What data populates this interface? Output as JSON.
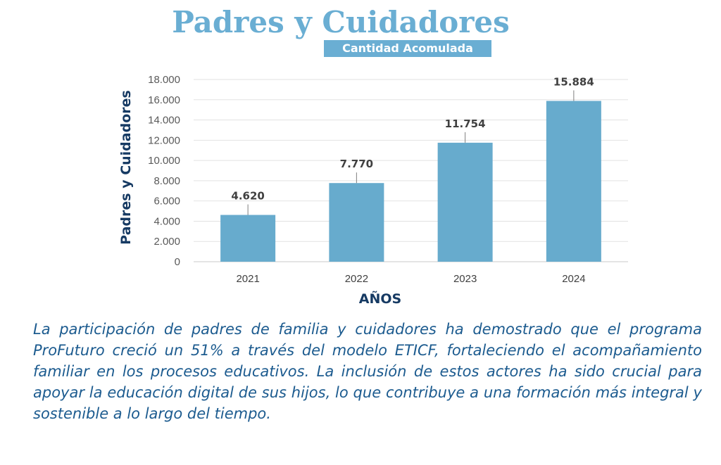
{
  "colors": {
    "title": "#6aaed3",
    "bar": "#67abcd",
    "axis_label": "#163a63",
    "caption": "#1c5b8f"
  },
  "chart_data": {
    "type": "bar",
    "title": "Padres y Cuidadores",
    "subtitle": "Cantidad Acomulada",
    "xlabel": "AÑOS",
    "ylabel": "Padres y Cuidadores",
    "categories": [
      "2021",
      "2022",
      "2023",
      "2024"
    ],
    "values": [
      4620,
      7770,
      11754,
      15884
    ],
    "value_labels": [
      "4.620",
      "7.770",
      "11.754",
      "15.884"
    ],
    "ylim": [
      0,
      18000
    ],
    "yticks": [
      0,
      2000,
      4000,
      6000,
      8000,
      10000,
      12000,
      14000,
      16000,
      18000
    ],
    "ytick_labels": [
      "0",
      "2.000",
      "4.000",
      "6.000",
      "8.000",
      "10.000",
      "12.000",
      "14.000",
      "16.000",
      "18.000"
    ],
    "grid": true,
    "legend": "none"
  },
  "caption": "La participación de padres de familia y cuidadores ha demostrado que el programa ProFuturo creció un 51% a través del modelo ETICF, fortale­ciendo el acompañamiento familiar en los procesos educativos. La inclu­sión de estos actores ha sido crucial para apoyar la educación digital de sus hijos, lo que contribuye a una formación más integral y sostenible a lo largo del tiempo."
}
